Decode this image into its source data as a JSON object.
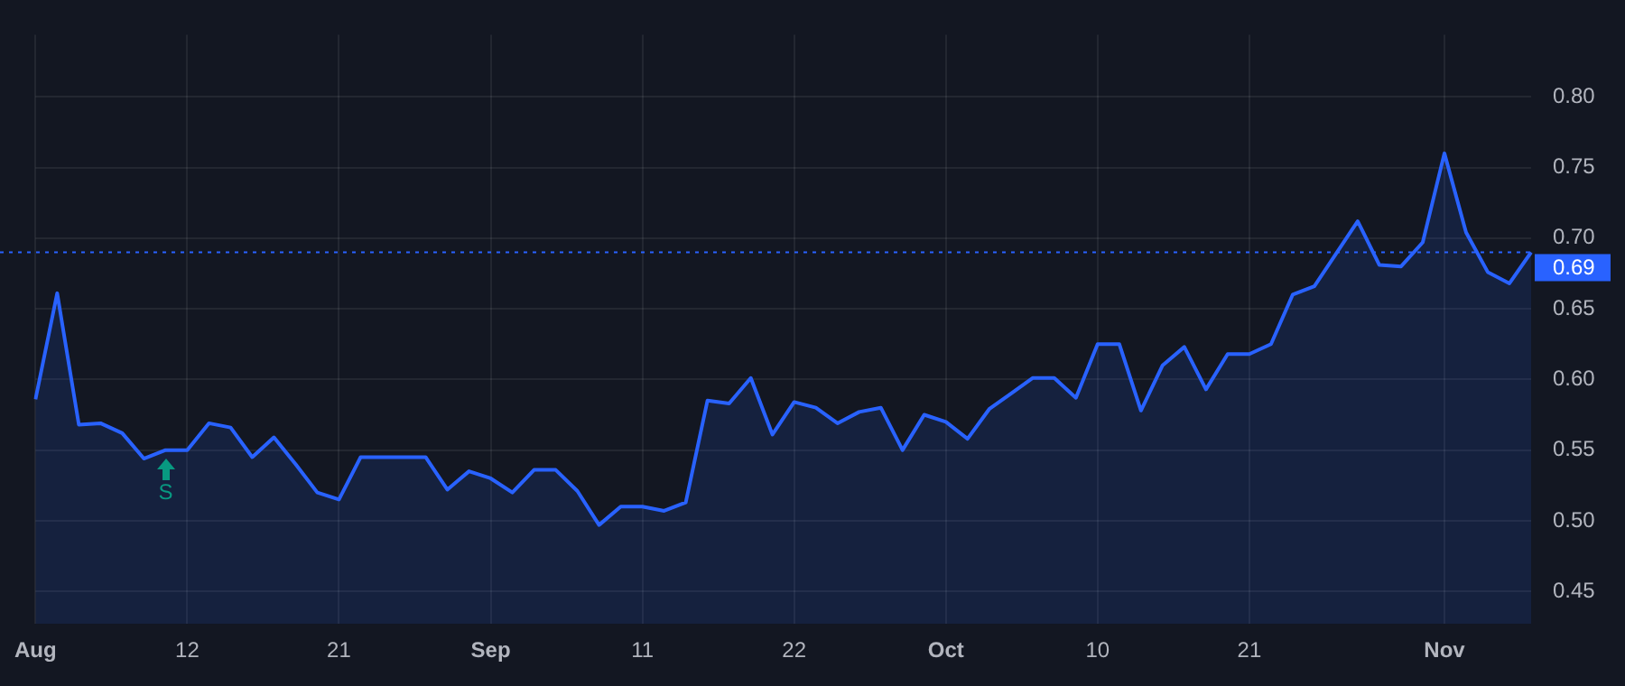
{
  "chart_data": {
    "type": "area",
    "categories": [
      "Aug",
      null,
      null,
      null,
      null,
      null,
      null,
      "12",
      null,
      null,
      null,
      null,
      null,
      null,
      "21",
      null,
      null,
      null,
      null,
      null,
      null,
      "Sep",
      null,
      null,
      null,
      null,
      null,
      null,
      "11",
      null,
      null,
      null,
      null,
      null,
      null,
      "22",
      null,
      null,
      null,
      null,
      null,
      null,
      "Oct",
      null,
      null,
      null,
      null,
      null,
      null,
      "10",
      null,
      null,
      null,
      null,
      null,
      null,
      "21",
      null,
      null,
      null,
      null,
      null,
      null,
      null,
      null,
      "Nov",
      null,
      null,
      null,
      null
    ],
    "series": [
      {
        "color": "#2962ff",
        "values": [
          0.586,
          0.661,
          0.568,
          0.569,
          0.562,
          0.544,
          0.55,
          0.55,
          0.569,
          0.566,
          0.545,
          0.559,
          0.54,
          0.52,
          0.515,
          0.545,
          0.545,
          0.545,
          0.545,
          0.522,
          0.535,
          0.53,
          0.52,
          0.536,
          0.536,
          0.521,
          0.497,
          0.51,
          0.51,
          0.507,
          0.513,
          0.585,
          0.583,
          0.601,
          0.561,
          0.584,
          0.58,
          0.569,
          0.577,
          0.58,
          0.55,
          0.575,
          0.57,
          0.558,
          0.579,
          0.59,
          0.601,
          0.601,
          0.587,
          0.625,
          0.625,
          0.578,
          0.61,
          0.623,
          0.593,
          0.618,
          0.618,
          0.625,
          0.66,
          0.666,
          0.689,
          0.712,
          0.681,
          0.68,
          0.697,
          0.76,
          0.704,
          0.676,
          0.668,
          0.69
        ]
      }
    ],
    "ylim": [
      0.427,
      0.844
    ],
    "yticks": [
      0.45,
      {
        "value": 0.5,
        "label": "0.50"
      },
      0.55,
      {
        "value": 0.6,
        "label": "0.60"
      },
      0.65,
      {
        "value": 0.7,
        "label": "0.70"
      },
      0.75,
      {
        "value": 0.8,
        "label": "0.80"
      }
    ],
    "ref_lines": [
      {
        "axis": "y",
        "value": 0.69,
        "label": "0.69",
        "color": "#2962ff",
        "line_style": "dotted"
      }
    ],
    "annotations": [
      "S"
    ],
    "grid": true,
    "legend": false,
    "marker": "none",
    "line_style": "solid"
  }
}
